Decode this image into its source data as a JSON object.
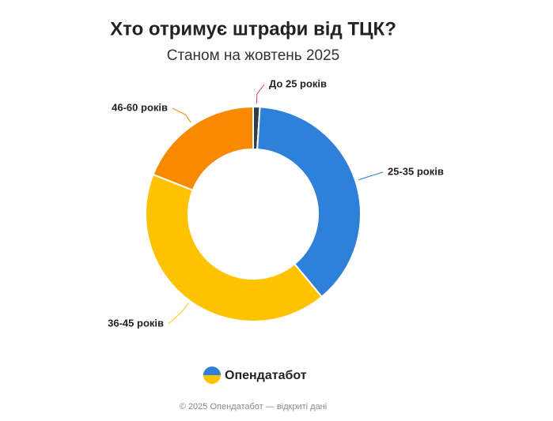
{
  "chart_data": {
    "type": "donut",
    "title": "Хто отримує штрафи від ТЦК?",
    "subtitle": "Станом на жовтень 2025",
    "categories": [
      "До 25 років",
      "25-35 років",
      "36-45 років",
      "46-60 років"
    ],
    "values": [
      1,
      38,
      42,
      19
    ],
    "colors": [
      "#2d3e50",
      "#2f80d9",
      "#fdc300",
      "#f98a00"
    ],
    "brand": "Опендатабот",
    "footer": "© 2025 Опендатабот — відкриті дані"
  }
}
